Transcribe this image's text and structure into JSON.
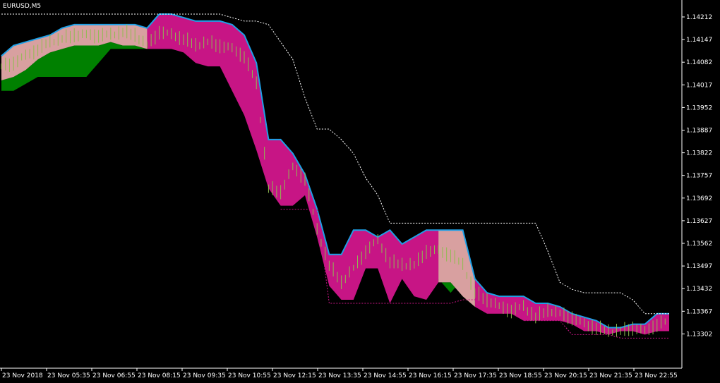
{
  "window": {
    "title": "EURUSD,M5"
  },
  "colors": {
    "background": "#000000",
    "axis": "#ffffff",
    "cloud_bear": "#c71585",
    "cloud_bull": "#008000",
    "cloud_overlap": "#d8a0a0",
    "upper_line": "#1ea0e6",
    "candles": "#8fbc50",
    "dotted_upper": "#ffffff",
    "dotted_lower": "#c71585"
  },
  "chart_data": {
    "type": "area",
    "symbol": "EURUSD",
    "timeframe": "M5",
    "y_ticks": [
      "1.14212",
      "1.14147",
      "1.14082",
      "1.14017",
      "1.13952",
      "1.13887",
      "1.13822",
      "1.13757",
      "1.13692",
      "1.13627",
      "1.13562",
      "1.13497",
      "1.13432",
      "1.13367",
      "1.13302"
    ],
    "x_ticks": [
      "23 Nov 2018",
      "23 Nov 05:35",
      "23 Nov 06:55",
      "23 Nov 08:15",
      "23 Nov 09:35",
      "23 Nov 10:55",
      "23 Nov 12:15",
      "23 Nov 13:35",
      "23 Nov 14:55",
      "23 Nov 16:15",
      "23 Nov 17:35",
      "23 Nov 18:55",
      "23 Nov 20:15",
      "23 Nov 21:35",
      "23 Nov 22:55"
    ],
    "ylim": [
      1.1327,
      1.1423
    ],
    "upper": [
      1.141,
      1.1413,
      1.1414,
      1.1415,
      1.1416,
      1.1418,
      1.1419,
      1.1419,
      1.1419,
      1.1419,
      1.1419,
      1.1419,
      1.1418,
      1.1422,
      1.1422,
      1.1421,
      1.142,
      1.142,
      1.142,
      1.1419,
      1.1416,
      1.1408,
      1.1386,
      1.1386,
      1.1382,
      1.1376,
      1.1366,
      1.1353,
      1.1353,
      1.136,
      1.136,
      1.1358,
      1.136,
      1.1356,
      1.1358,
      1.136,
      1.136,
      1.136,
      1.136,
      1.1346,
      1.1342,
      1.1341,
      1.1341,
      1.1341,
      1.1339,
      1.1339,
      1.1338,
      1.1336,
      1.1335,
      1.1334,
      1.1332,
      1.1332,
      1.1333,
      1.1333,
      1.1336,
      1.1336
    ],
    "lower": [
      1.1403,
      1.1404,
      1.1406,
      1.1409,
      1.1411,
      1.1412,
      1.1413,
      1.1413,
      1.1413,
      1.1414,
      1.1413,
      1.1413,
      1.1412,
      1.1412,
      1.1412,
      1.1411,
      1.1408,
      1.1407,
      1.1407,
      1.14,
      1.1393,
      1.1383,
      1.1372,
      1.1367,
      1.1367,
      1.137,
      1.1358,
      1.1344,
      1.134,
      1.134,
      1.1349,
      1.1349,
      1.1339,
      1.1346,
      1.1341,
      1.134,
      1.1345,
      1.1345,
      1.1341,
      1.1338,
      1.1336,
      1.1336,
      1.1336,
      1.1334,
      1.1334,
      1.1334,
      1.1334,
      1.1333,
      1.1331,
      1.1331,
      1.133,
      1.1331,
      1.1331,
      1.133,
      1.1331,
      1.1331
    ],
    "bull_bottom": [
      1.14,
      1.14,
      1.1402,
      1.1404,
      1.1404,
      1.1404,
      1.1404,
      1.1404,
      1.1408,
      1.1412,
      1.1412,
      1.1412,
      1.1412,
      null,
      null,
      null,
      null,
      null,
      null,
      null,
      null,
      null,
      null,
      null,
      null,
      null,
      null,
      null,
      null,
      null,
      null,
      null,
      null,
      null,
      null,
      null,
      1.1346,
      1.1342,
      1.1346,
      1.1347,
      null,
      null,
      null,
      null,
      null,
      null,
      null,
      null,
      null,
      null,
      null,
      null,
      null,
      null,
      null,
      null
    ],
    "dotted_upper": [
      1.1422,
      1.1422,
      1.1422,
      1.1422,
      1.1422,
      1.1422,
      1.1422,
      1.1422,
      1.1422,
      1.1422,
      1.1422,
      1.1422,
      1.1422,
      1.1422,
      1.1422,
      1.1422,
      1.1422,
      1.1422,
      1.1422,
      1.1421,
      1.142,
      1.142,
      1.1419,
      1.1414,
      1.1409,
      1.1398,
      1.1389,
      1.1389,
      1.1386,
      1.1382,
      1.1375,
      1.137,
      1.1362,
      1.1362,
      1.1362,
      1.1362,
      1.1362,
      1.1362,
      1.1362,
      1.1362,
      1.1362,
      1.1362,
      1.1362,
      1.1362,
      1.1362,
      1.1354,
      1.1345,
      1.1343,
      1.1342,
      1.1342,
      1.1342,
      1.1342,
      1.134,
      1.1336,
      1.1336,
      1.1336
    ],
    "dotted_lower": [
      null,
      null,
      null,
      null,
      null,
      null,
      null,
      null,
      null,
      null,
      null,
      null,
      null,
      null,
      null,
      null,
      null,
      null,
      null,
      null,
      null,
      null,
      null,
      1.1366,
      1.1366,
      1.1366,
      1.1366,
      1.1339,
      1.1339,
      1.1339,
      1.1339,
      1.1339,
      1.1339,
      1.1339,
      1.1339,
      1.1339,
      1.1339,
      1.1339,
      1.134,
      1.134,
      1.134,
      1.134,
      1.134,
      1.1334,
      1.1334,
      1.1334,
      1.1334,
      1.133,
      1.133,
      1.133,
      1.133,
      1.1329,
      1.1329,
      1.1329,
      1.1329,
      1.1329
    ],
    "close": [
      1.1407,
      1.1408,
      1.141,
      1.1412,
      1.1414,
      1.1415,
      1.1416,
      1.1416,
      1.1416,
      1.1416,
      1.1417,
      1.1416,
      1.1413,
      1.1417,
      1.1416,
      1.1415,
      1.1413,
      1.1414,
      1.1413,
      1.1412,
      1.141,
      1.1402,
      1.1372,
      1.1371,
      1.1378,
      1.1375,
      1.136,
      1.135,
      1.1345,
      1.1349,
      1.1354,
      1.1357,
      1.1351,
      1.135,
      1.135,
      1.1354,
      1.1354,
      1.1353,
      1.135,
      1.1342,
      1.134,
      1.1338,
      1.1337,
      1.1338,
      1.1335,
      1.1337,
      1.1336,
      1.1335,
      1.1333,
      1.1332,
      1.1331,
      1.1331,
      1.1332,
      1.1331,
      1.1333,
      1.1334
    ]
  }
}
